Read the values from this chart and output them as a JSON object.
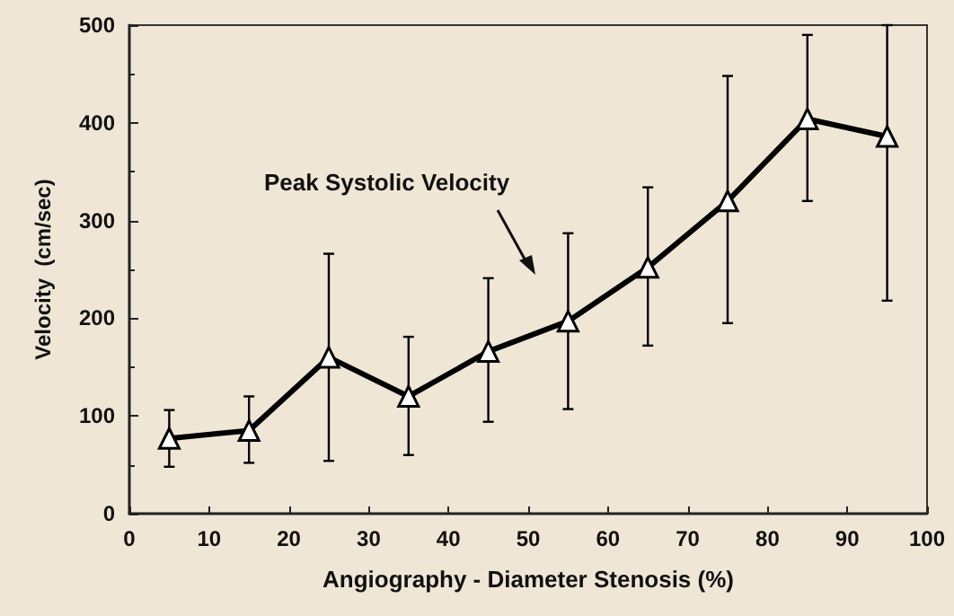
{
  "chart_data": {
    "type": "line",
    "xlabel": "Angiography - Diameter Stenosis (%)",
    "ylabel": "Velocity  (cm/sec)",
    "x": [
      5,
      15,
      25,
      35,
      45,
      55,
      65,
      75,
      85,
      95
    ],
    "series": [
      {
        "color": "#000000",
        "values": [
          77,
          85,
          160,
          120,
          166,
          197,
          252,
          320,
          404,
          386
        ],
        "errors": [
          [
            48,
            106
          ],
          [
            52,
            120
          ],
          [
            54,
            266
          ],
          [
            60,
            181
          ],
          [
            94,
            241
          ],
          [
            107,
            287
          ],
          [
            172,
            334
          ],
          [
            195,
            448
          ],
          [
            320,
            490
          ],
          [
            218,
            500
          ]
        ]
      }
    ],
    "xlim": [
      0,
      100
    ],
    "xticks": [
      0,
      10,
      20,
      30,
      40,
      50,
      60,
      70,
      80,
      90,
      100
    ],
    "ylim": [
      0,
      500
    ],
    "yticks": [
      0,
      100,
      200,
      300,
      400,
      500
    ],
    "annotations": [
      "Peak Systolic Velocity"
    ],
    "marker": "triangle",
    "line_style": "solid"
  }
}
